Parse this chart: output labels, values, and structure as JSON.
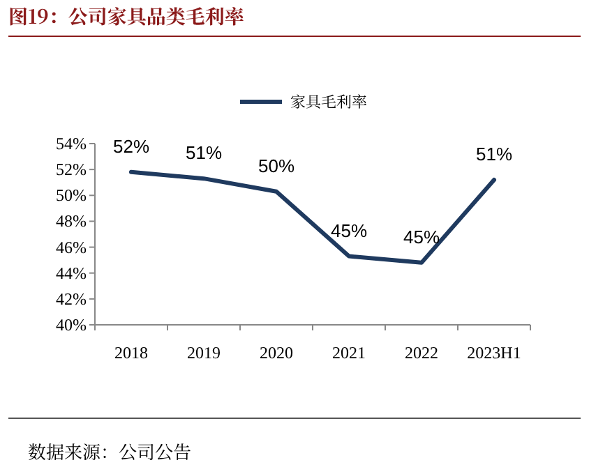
{
  "chart_data": {
    "type": "line",
    "title": "图19：公司家具品类毛利率",
    "categories": [
      "2018",
      "2019",
      "2020",
      "2021",
      "2022",
      "2023H1"
    ],
    "series": [
      {
        "name": "家具毛利率",
        "color": "#1f3a5f",
        "values": [
          51.8,
          51.3,
          50.3,
          45.3,
          44.8,
          51.2
        ],
        "value_labels": [
          "52%",
          "51%",
          "50%",
          "45%",
          "45%",
          "51%"
        ]
      }
    ],
    "ylim": [
      40,
      54
    ],
    "yticks": [
      {
        "value": 40,
        "label": "40%"
      },
      {
        "value": 42,
        "label": "42%"
      },
      {
        "value": 44,
        "label": "44%"
      },
      {
        "value": 46,
        "label": "46%"
      },
      {
        "value": 48,
        "label": "48%"
      },
      {
        "value": 50,
        "label": "50%"
      },
      {
        "value": 52,
        "label": "52%"
      },
      {
        "value": 54,
        "label": "54%"
      }
    ],
    "legend": "top",
    "grid": false,
    "marker": "none",
    "line_style": "solid",
    "annotations": [
      "数据来源：公司公告"
    ]
  }
}
